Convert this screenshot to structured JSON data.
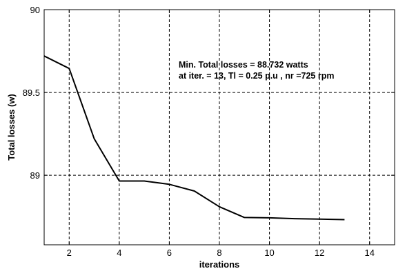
{
  "chart_data": {
    "type": "line",
    "title": "",
    "xlabel": "iterations",
    "ylabel": "Total losses (w)",
    "xlim": [
      1,
      15
    ],
    "ylim": [
      88.58,
      90
    ],
    "xticks": [
      2,
      4,
      6,
      8,
      10,
      12,
      14
    ],
    "yticks": [
      89,
      89.5,
      90
    ],
    "ytick_labels": [
      "89",
      "89.5",
      "90"
    ],
    "grid": true,
    "legend": "none",
    "line_color": "#000000",
    "series": [
      {
        "x": [
          1,
          2,
          3,
          4,
          5,
          6,
          7,
          8,
          9,
          10,
          11,
          12,
          13
        ],
        "values": [
          89.72,
          89.645,
          89.22,
          88.965,
          88.965,
          88.945,
          88.905,
          88.81,
          88.745,
          88.743,
          88.738,
          88.735,
          88.732
        ]
      }
    ],
    "annotations": [
      "Min. Total losses = 88.732 watts",
      "at iter. = 13, Tl = 0.25 p.u , nr =725 rpm"
    ]
  }
}
